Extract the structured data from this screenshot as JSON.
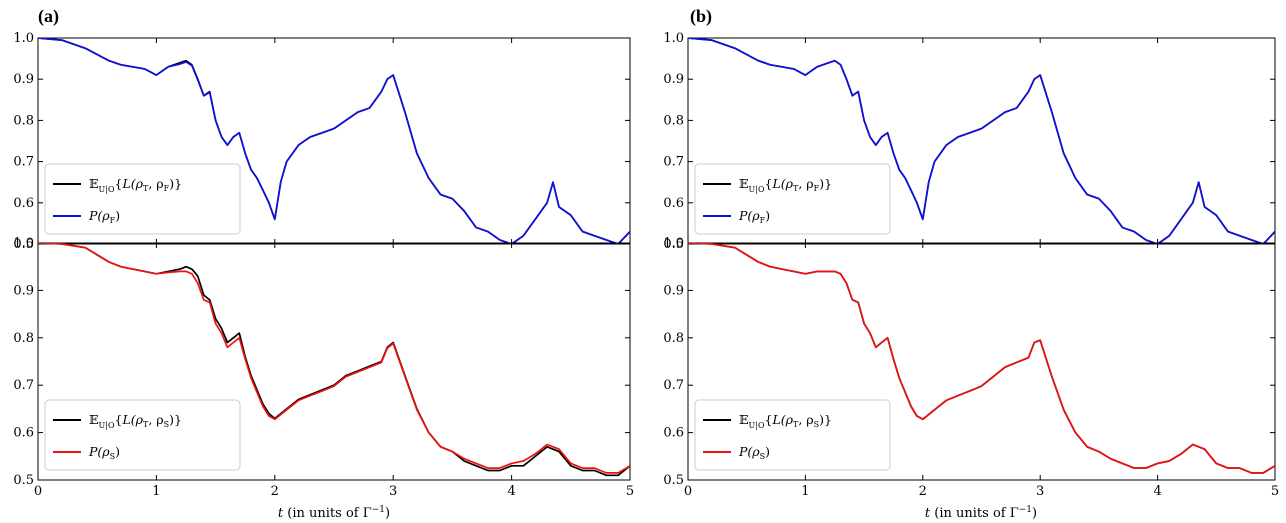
{
  "panels": {
    "a_label": "(a)",
    "b_label": "(b)"
  },
  "xlabel": "t (in units of Γ⁻¹)",
  "chart_data": [
    {
      "id": "a-top",
      "type": "line",
      "xlim": [
        0,
        5
      ],
      "ylim": [
        0.5,
        1.0
      ],
      "xticks": [
        "0",
        "1",
        "2",
        "3",
        "4",
        "5"
      ],
      "yticks": [
        "0.5",
        "0.6",
        "0.7",
        "0.8",
        "0.9",
        "1.0"
      ],
      "legend_position": "lower-left",
      "series": [
        {
          "name": "E_{U|O}{L(ρT, ρF)}",
          "color": "#000000",
          "x": [
            0,
            0.2,
            0.4,
            0.5,
            0.6,
            0.7,
            0.8,
            0.9,
            1.0,
            1.1,
            1.2,
            1.25,
            1.3,
            1.35,
            1.4,
            1.45,
            1.5,
            1.55,
            1.6,
            1.65,
            1.7,
            1.75,
            1.8,
            1.85,
            1.9,
            1.95,
            2.0,
            2.05,
            2.1,
            2.2,
            2.3,
            2.4,
            2.5,
            2.6,
            2.7,
            2.8,
            2.9,
            2.95,
            3.0,
            3.1,
            3.2,
            3.3,
            3.4,
            3.5,
            3.6,
            3.7,
            3.8,
            3.9,
            4.0,
            4.1,
            4.2,
            4.3,
            4.35,
            4.4,
            4.5,
            4.6,
            4.7,
            4.8,
            4.9,
            5.0
          ],
          "y": [
            1.0,
            0.995,
            0.975,
            0.96,
            0.945,
            0.935,
            0.93,
            0.925,
            0.91,
            0.93,
            0.94,
            0.945,
            0.935,
            0.9,
            0.86,
            0.87,
            0.8,
            0.76,
            0.74,
            0.76,
            0.77,
            0.72,
            0.68,
            0.66,
            0.63,
            0.6,
            0.56,
            0.65,
            0.7,
            0.74,
            0.76,
            0.77,
            0.78,
            0.8,
            0.82,
            0.83,
            0.87,
            0.9,
            0.91,
            0.82,
            0.72,
            0.66,
            0.62,
            0.61,
            0.58,
            0.54,
            0.53,
            0.51,
            0.5,
            0.52,
            0.56,
            0.6,
            0.65,
            0.59,
            0.57,
            0.53,
            0.52,
            0.51,
            0.5,
            0.53
          ]
        },
        {
          "name": "P(ρF)",
          "color": "#1010e0",
          "x": [
            0,
            0.2,
            0.4,
            0.5,
            0.6,
            0.7,
            0.8,
            0.9,
            1.0,
            1.1,
            1.2,
            1.25,
            1.3,
            1.35,
            1.4,
            1.45,
            1.5,
            1.55,
            1.6,
            1.65,
            1.7,
            1.75,
            1.8,
            1.85,
            1.9,
            1.95,
            2.0,
            2.05,
            2.1,
            2.2,
            2.3,
            2.4,
            2.5,
            2.6,
            2.7,
            2.8,
            2.9,
            2.95,
            3.0,
            3.1,
            3.2,
            3.3,
            3.4,
            3.5,
            3.6,
            3.7,
            3.8,
            3.9,
            4.0,
            4.1,
            4.2,
            4.3,
            4.35,
            4.4,
            4.5,
            4.6,
            4.7,
            4.8,
            4.9,
            5.0
          ],
          "y": [
            1.0,
            0.995,
            0.975,
            0.96,
            0.945,
            0.935,
            0.93,
            0.925,
            0.91,
            0.93,
            0.937,
            0.942,
            0.933,
            0.898,
            0.86,
            0.868,
            0.8,
            0.76,
            0.74,
            0.76,
            0.77,
            0.72,
            0.68,
            0.66,
            0.63,
            0.6,
            0.56,
            0.65,
            0.7,
            0.74,
            0.76,
            0.77,
            0.78,
            0.8,
            0.82,
            0.83,
            0.87,
            0.9,
            0.91,
            0.82,
            0.72,
            0.66,
            0.62,
            0.61,
            0.58,
            0.54,
            0.53,
            0.51,
            0.5,
            0.52,
            0.56,
            0.6,
            0.65,
            0.59,
            0.57,
            0.53,
            0.52,
            0.51,
            0.5,
            0.53
          ]
        }
      ]
    },
    {
      "id": "a-bottom",
      "type": "line",
      "xlim": [
        0,
        5
      ],
      "ylim": [
        0.5,
        1.0
      ],
      "xticks": [
        "0",
        "1",
        "2",
        "3",
        "4",
        "5"
      ],
      "yticks": [
        "0.5",
        "0.6",
        "0.7",
        "0.8",
        "0.9",
        "1.0"
      ],
      "legend_position": "lower-left",
      "series": [
        {
          "name": "E_{U|O}{L(ρT, ρS)}",
          "color": "#000000",
          "x": [
            0,
            0.2,
            0.4,
            0.5,
            0.6,
            0.7,
            0.8,
            0.9,
            1.0,
            1.1,
            1.2,
            1.25,
            1.3,
            1.35,
            1.4,
            1.45,
            1.5,
            1.55,
            1.6,
            1.65,
            1.7,
            1.75,
            1.8,
            1.85,
            1.9,
            1.95,
            2.0,
            2.1,
            2.2,
            2.3,
            2.4,
            2.5,
            2.6,
            2.7,
            2.8,
            2.9,
            2.95,
            3.0,
            3.1,
            3.2,
            3.3,
            3.4,
            3.5,
            3.6,
            3.7,
            3.8,
            3.9,
            4.0,
            4.1,
            4.2,
            4.3,
            4.4,
            4.5,
            4.6,
            4.7,
            4.8,
            4.9,
            5.0
          ],
          "y": [
            1.0,
            0.998,
            0.99,
            0.975,
            0.96,
            0.95,
            0.945,
            0.94,
            0.935,
            0.94,
            0.945,
            0.95,
            0.945,
            0.93,
            0.89,
            0.88,
            0.84,
            0.82,
            0.79,
            0.8,
            0.81,
            0.76,
            0.72,
            0.69,
            0.66,
            0.64,
            0.63,
            0.65,
            0.67,
            0.68,
            0.69,
            0.7,
            0.72,
            0.73,
            0.74,
            0.75,
            0.78,
            0.79,
            0.72,
            0.65,
            0.6,
            0.57,
            0.56,
            0.54,
            0.53,
            0.52,
            0.52,
            0.53,
            0.53,
            0.55,
            0.57,
            0.56,
            0.53,
            0.52,
            0.52,
            0.51,
            0.51,
            0.53
          ]
        },
        {
          "name": "P(ρS)",
          "color": "#ee1111",
          "x": [
            0,
            0.2,
            0.4,
            0.5,
            0.6,
            0.7,
            0.8,
            0.9,
            1.0,
            1.1,
            1.2,
            1.25,
            1.3,
            1.35,
            1.4,
            1.45,
            1.5,
            1.55,
            1.6,
            1.65,
            1.7,
            1.75,
            1.8,
            1.85,
            1.9,
            1.95,
            2.0,
            2.1,
            2.2,
            2.3,
            2.4,
            2.5,
            2.6,
            2.7,
            2.8,
            2.9,
            2.95,
            3.0,
            3.1,
            3.2,
            3.3,
            3.4,
            3.5,
            3.6,
            3.7,
            3.8,
            3.9,
            4.0,
            4.1,
            4.2,
            4.3,
            4.4,
            4.5,
            4.6,
            4.7,
            4.8,
            4.9,
            5.0
          ],
          "y": [
            1.0,
            0.998,
            0.99,
            0.975,
            0.96,
            0.95,
            0.945,
            0.94,
            0.935,
            0.938,
            0.94,
            0.94,
            0.935,
            0.915,
            0.88,
            0.875,
            0.83,
            0.81,
            0.78,
            0.79,
            0.8,
            0.755,
            0.715,
            0.685,
            0.655,
            0.635,
            0.628,
            0.648,
            0.668,
            0.678,
            0.688,
            0.698,
            0.718,
            0.728,
            0.738,
            0.748,
            0.778,
            0.788,
            0.718,
            0.648,
            0.6,
            0.57,
            0.56,
            0.545,
            0.535,
            0.525,
            0.525,
            0.535,
            0.54,
            0.555,
            0.575,
            0.565,
            0.535,
            0.525,
            0.525,
            0.515,
            0.515,
            0.53
          ]
        }
      ]
    },
    {
      "id": "b-top",
      "type": "line",
      "xlim": [
        0,
        5
      ],
      "ylim": [
        0.5,
        1.0
      ],
      "xticks": [
        "0",
        "1",
        "2",
        "3",
        "4",
        "5"
      ],
      "yticks": [
        "0.5",
        "0.6",
        "0.7",
        "0.8",
        "0.9",
        "1.0"
      ],
      "legend_position": "lower-left",
      "series": [
        {
          "name": "E_{U|O}{L(ρT, ρF)}",
          "color": "#000000",
          "x": [
            0,
            0.2,
            0.4,
            0.5,
            0.6,
            0.7,
            0.8,
            0.9,
            1.0,
            1.1,
            1.2,
            1.25,
            1.3,
            1.35,
            1.4,
            1.45,
            1.5,
            1.55,
            1.6,
            1.65,
            1.7,
            1.75,
            1.8,
            1.85,
            1.9,
            1.95,
            2.0,
            2.05,
            2.1,
            2.2,
            2.3,
            2.4,
            2.5,
            2.6,
            2.7,
            2.8,
            2.9,
            2.95,
            3.0,
            3.1,
            3.2,
            3.3,
            3.4,
            3.5,
            3.6,
            3.7,
            3.8,
            3.9,
            4.0,
            4.1,
            4.2,
            4.3,
            4.35,
            4.4,
            4.5,
            4.6,
            4.7,
            4.8,
            4.9,
            5.0
          ],
          "y": [
            1.0,
            0.995,
            0.975,
            0.96,
            0.945,
            0.935,
            0.93,
            0.925,
            0.91,
            0.93,
            0.94,
            0.945,
            0.935,
            0.9,
            0.86,
            0.87,
            0.8,
            0.76,
            0.74,
            0.76,
            0.77,
            0.72,
            0.68,
            0.66,
            0.63,
            0.6,
            0.56,
            0.65,
            0.7,
            0.74,
            0.76,
            0.77,
            0.78,
            0.8,
            0.82,
            0.83,
            0.87,
            0.9,
            0.91,
            0.82,
            0.72,
            0.66,
            0.62,
            0.61,
            0.58,
            0.54,
            0.53,
            0.51,
            0.5,
            0.52,
            0.56,
            0.6,
            0.65,
            0.59,
            0.57,
            0.53,
            0.52,
            0.51,
            0.5,
            0.53
          ]
        },
        {
          "name": "P(ρF)",
          "color": "#1010e0",
          "x": [
            0,
            0.2,
            0.4,
            0.5,
            0.6,
            0.7,
            0.8,
            0.9,
            1.0,
            1.1,
            1.2,
            1.25,
            1.3,
            1.35,
            1.4,
            1.45,
            1.5,
            1.55,
            1.6,
            1.65,
            1.7,
            1.75,
            1.8,
            1.85,
            1.9,
            1.95,
            2.0,
            2.05,
            2.1,
            2.2,
            2.3,
            2.4,
            2.5,
            2.6,
            2.7,
            2.8,
            2.9,
            2.95,
            3.0,
            3.1,
            3.2,
            3.3,
            3.4,
            3.5,
            3.6,
            3.7,
            3.8,
            3.9,
            4.0,
            4.1,
            4.2,
            4.3,
            4.35,
            4.4,
            4.5,
            4.6,
            4.7,
            4.8,
            4.9,
            5.0
          ],
          "y": [
            1.0,
            0.995,
            0.975,
            0.96,
            0.945,
            0.935,
            0.93,
            0.925,
            0.91,
            0.93,
            0.94,
            0.945,
            0.935,
            0.9,
            0.86,
            0.87,
            0.8,
            0.76,
            0.74,
            0.76,
            0.77,
            0.72,
            0.68,
            0.66,
            0.63,
            0.6,
            0.56,
            0.65,
            0.7,
            0.74,
            0.76,
            0.77,
            0.78,
            0.8,
            0.82,
            0.83,
            0.87,
            0.9,
            0.91,
            0.82,
            0.72,
            0.66,
            0.62,
            0.61,
            0.58,
            0.54,
            0.53,
            0.51,
            0.5,
            0.52,
            0.56,
            0.6,
            0.65,
            0.59,
            0.57,
            0.53,
            0.52,
            0.51,
            0.5,
            0.53
          ]
        }
      ]
    },
    {
      "id": "b-bottom",
      "type": "line",
      "xlim": [
        0,
        5
      ],
      "ylim": [
        0.5,
        1.0
      ],
      "xticks": [
        "0",
        "1",
        "2",
        "3",
        "4",
        "5"
      ],
      "yticks": [
        "0.5",
        "0.6",
        "0.7",
        "0.8",
        "0.9",
        "1.0"
      ],
      "legend_position": "lower-left",
      "series": [
        {
          "name": "E_{U|O}{L(ρT, ρS)}",
          "color": "#000000",
          "x": [
            0,
            0.2,
            0.4,
            0.5,
            0.6,
            0.7,
            0.8,
            0.9,
            1.0,
            1.1,
            1.2,
            1.25,
            1.3,
            1.35,
            1.4,
            1.45,
            1.5,
            1.55,
            1.6,
            1.65,
            1.7,
            1.75,
            1.8,
            1.85,
            1.9,
            1.95,
            2.0,
            2.1,
            2.2,
            2.3,
            2.4,
            2.5,
            2.6,
            2.7,
            2.8,
            2.9,
            2.95,
            3.0,
            3.1,
            3.2,
            3.3,
            3.4,
            3.5,
            3.6,
            3.7,
            3.8,
            3.9,
            4.0,
            4.1,
            4.2,
            4.3,
            4.4,
            4.5,
            4.6,
            4.7,
            4.8,
            4.9,
            5.0
          ],
          "y": [
            1.0,
            0.998,
            0.99,
            0.975,
            0.96,
            0.95,
            0.945,
            0.94,
            0.935,
            0.94,
            0.94,
            0.94,
            0.935,
            0.915,
            0.88,
            0.875,
            0.83,
            0.81,
            0.78,
            0.79,
            0.8,
            0.755,
            0.715,
            0.685,
            0.655,
            0.635,
            0.628,
            0.648,
            0.668,
            0.678,
            0.688,
            0.698,
            0.718,
            0.738,
            0.748,
            0.758,
            0.79,
            0.795,
            0.718,
            0.648,
            0.6,
            0.57,
            0.56,
            0.545,
            0.535,
            0.525,
            0.525,
            0.535,
            0.54,
            0.555,
            0.575,
            0.565,
            0.535,
            0.525,
            0.525,
            0.515,
            0.515,
            0.53
          ]
        },
        {
          "name": "P(ρS)",
          "color": "#ee1111",
          "x": [
            0,
            0.2,
            0.4,
            0.5,
            0.6,
            0.7,
            0.8,
            0.9,
            1.0,
            1.1,
            1.2,
            1.25,
            1.3,
            1.35,
            1.4,
            1.45,
            1.5,
            1.55,
            1.6,
            1.65,
            1.7,
            1.75,
            1.8,
            1.85,
            1.9,
            1.95,
            2.0,
            2.1,
            2.2,
            2.3,
            2.4,
            2.5,
            2.6,
            2.7,
            2.8,
            2.9,
            2.95,
            3.0,
            3.1,
            3.2,
            3.3,
            3.4,
            3.5,
            3.6,
            3.7,
            3.8,
            3.9,
            4.0,
            4.1,
            4.2,
            4.3,
            4.4,
            4.5,
            4.6,
            4.7,
            4.8,
            4.9,
            5.0
          ],
          "y": [
            1.0,
            0.998,
            0.99,
            0.975,
            0.96,
            0.95,
            0.945,
            0.94,
            0.935,
            0.94,
            0.94,
            0.94,
            0.935,
            0.915,
            0.88,
            0.875,
            0.83,
            0.81,
            0.78,
            0.79,
            0.8,
            0.755,
            0.715,
            0.685,
            0.655,
            0.635,
            0.628,
            0.648,
            0.668,
            0.678,
            0.688,
            0.698,
            0.718,
            0.738,
            0.748,
            0.758,
            0.79,
            0.795,
            0.718,
            0.648,
            0.6,
            0.57,
            0.56,
            0.545,
            0.535,
            0.525,
            0.525,
            0.535,
            0.54,
            0.555,
            0.575,
            0.565,
            0.535,
            0.525,
            0.525,
            0.515,
            0.515,
            0.53
          ]
        }
      ]
    }
  ]
}
